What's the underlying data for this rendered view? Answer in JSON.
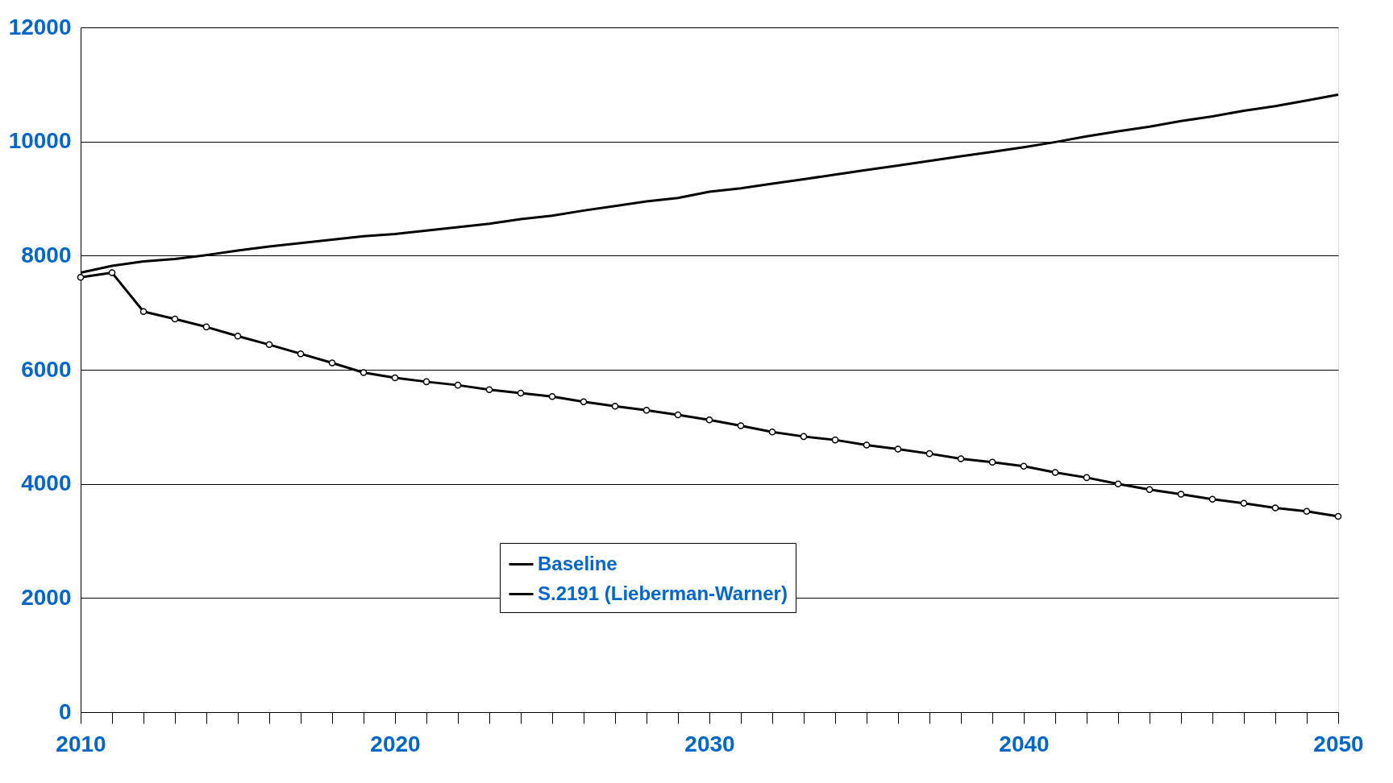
{
  "chart_data": {
    "type": "line",
    "x": [
      2010,
      2011,
      2012,
      2013,
      2014,
      2015,
      2016,
      2017,
      2018,
      2019,
      2020,
      2021,
      2022,
      2023,
      2024,
      2025,
      2026,
      2027,
      2028,
      2029,
      2030,
      2031,
      2032,
      2033,
      2034,
      2035,
      2036,
      2037,
      2038,
      2039,
      2040,
      2041,
      2042,
      2043,
      2044,
      2045,
      2046,
      2047,
      2048,
      2049,
      2050
    ],
    "series": [
      {
        "name": "Baseline",
        "color": "#000000",
        "marker": "none",
        "values": [
          7700,
          7820,
          7900,
          7940,
          8010,
          8090,
          8160,
          8220,
          8280,
          8340,
          8380,
          8440,
          8500,
          8560,
          8640,
          8700,
          8790,
          8870,
          8950,
          9010,
          9120,
          9180,
          9260,
          9340,
          9420,
          9500,
          9580,
          9660,
          9740,
          9820,
          9900,
          9990,
          10090,
          10180,
          10260,
          10360,
          10440,
          10540,
          10620,
          10720,
          10820
        ]
      },
      {
        "name": "S.2191 (Lieberman-Warner)",
        "color": "#000000",
        "marker": "circle",
        "values": [
          7620,
          7700,
          7020,
          6890,
          6750,
          6590,
          6440,
          6280,
          6120,
          5950,
          5860,
          5790,
          5730,
          5650,
          5590,
          5530,
          5440,
          5360,
          5290,
          5210,
          5120,
          5020,
          4910,
          4830,
          4770,
          4680,
          4610,
          4530,
          4440,
          4380,
          4310,
          4200,
          4110,
          4000,
          3900,
          3820,
          3730,
          3660,
          3580,
          3520,
          3430
        ]
      }
    ],
    "xlim": [
      2010,
      2050
    ],
    "xticks": [
      2010,
      {
        "value": 2011,
        "label": null
      },
      {
        "value": 2012,
        "label": null
      },
      {
        "value": 2013,
        "label": null
      },
      {
        "value": 2014,
        "label": null
      },
      {
        "value": 2015,
        "label": null
      },
      {
        "value": 2016,
        "label": null
      },
      {
        "value": 2017,
        "label": null
      },
      {
        "value": 2018,
        "label": null
      },
      {
        "value": 2019,
        "label": null
      },
      2020,
      {
        "value": 2021,
        "label": null
      },
      {
        "value": 2022,
        "label": null
      },
      {
        "value": 2023,
        "label": null
      },
      {
        "value": 2024,
        "label": null
      },
      {
        "value": 2025,
        "label": null
      },
      {
        "value": 2026,
        "label": null
      },
      {
        "value": 2027,
        "label": null
      },
      {
        "value": 2028,
        "label": null
      },
      {
        "value": 2029,
        "label": null
      },
      2030,
      {
        "value": 2031,
        "label": null
      },
      {
        "value": 2032,
        "label": null
      },
      {
        "value": 2033,
        "label": null
      },
      {
        "value": 2034,
        "label": null
      },
      {
        "value": 2035,
        "label": null
      },
      {
        "value": 2036,
        "label": null
      },
      {
        "value": 2037,
        "label": null
      },
      {
        "value": 2038,
        "label": null
      },
      {
        "value": 2039,
        "label": null
      },
      2040,
      {
        "value": 2041,
        "label": null
      },
      {
        "value": 2042,
        "label": null
      },
      {
        "value": 2043,
        "label": null
      },
      {
        "value": 2044,
        "label": null
      },
      {
        "value": 2045,
        "label": null
      },
      {
        "value": 2046,
        "label": null
      },
      {
        "value": 2047,
        "label": null
      },
      {
        "value": 2048,
        "label": null
      },
      {
        "value": 2049,
        "label": null
      },
      2050
    ],
    "ylim": [
      0,
      12000
    ],
    "yticks": [
      0,
      2000,
      4000,
      6000,
      8000,
      10000,
      12000
    ],
    "grid": "y",
    "legend": "bottom",
    "line_style": "solid"
  }
}
